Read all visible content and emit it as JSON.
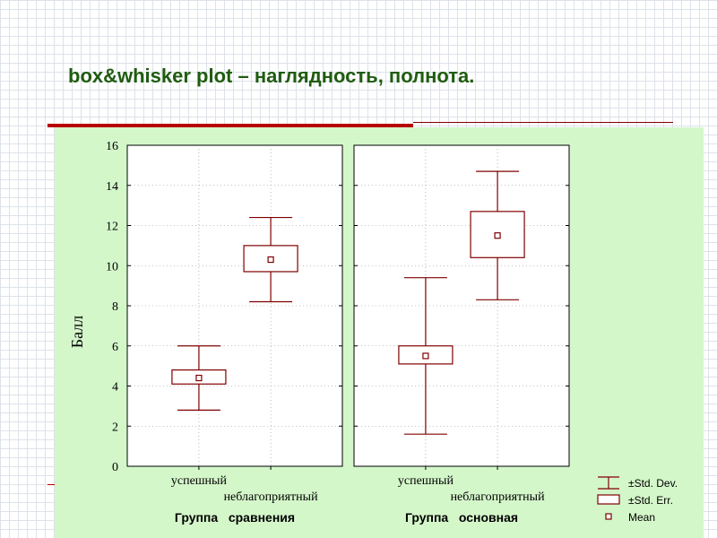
{
  "slide": {
    "title": "box&whisker plot – наглядность, полнота."
  },
  "colors": {
    "slide_background": "#ffffff",
    "chart_background": "#d4f7ca",
    "title": "#1f5c0f",
    "accent_rule": "#b80000",
    "box_stroke": "#800000"
  },
  "chart_data": {
    "type": "boxplot",
    "ylabel": "Балл",
    "ylim": [
      0,
      16
    ],
    "y_ticks": [
      0,
      2,
      4,
      6,
      8,
      10,
      12,
      14,
      16
    ],
    "grid": "dotted",
    "legend_position": "bottom-right",
    "legend": [
      "±Std. Dev.",
      "±Std. Err.",
      "Mean"
    ],
    "panels": [
      {
        "group_label": "Группа   сравнения",
        "categories": [
          "успешный",
          "неблагоприятный"
        ],
        "boxes": [
          {
            "mean": 4.4,
            "se_low": 4.1,
            "se_high": 4.8,
            "sd_low": 2.8,
            "sd_high": 6.0
          },
          {
            "mean": 10.3,
            "se_low": 9.7,
            "se_high": 11.0,
            "sd_low": 8.2,
            "sd_high": 12.4
          }
        ]
      },
      {
        "group_label": "Группа   основная",
        "categories": [
          "успешный",
          "неблагоприятный"
        ],
        "boxes": [
          {
            "mean": 5.5,
            "se_low": 5.1,
            "se_high": 6.0,
            "sd_low": 1.6,
            "sd_high": 9.4
          },
          {
            "mean": 11.5,
            "se_low": 10.4,
            "se_high": 12.7,
            "sd_low": 8.3,
            "sd_high": 14.7
          }
        ]
      }
    ]
  }
}
